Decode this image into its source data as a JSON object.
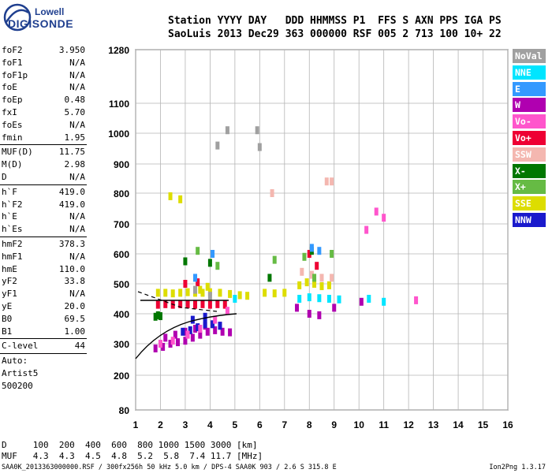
{
  "logo": {
    "line1": "Lowell",
    "line2": "DIGISONDE"
  },
  "header": {
    "labels": "Station YYYY DAY   DDD HHMMSS P1  FFS S AXN PPS IGA PS",
    "values": "SaoLuis 2013 Dec29 363 000000 RSF 005 2 713 100 10+ 22"
  },
  "params_group1": [
    {
      "key": "foF2",
      "value": "3.950"
    },
    {
      "key": "foF1",
      "value": "N/A"
    },
    {
      "key": "foF1p",
      "value": "N/A"
    },
    {
      "key": "foE",
      "value": "N/A"
    },
    {
      "key": "foEp",
      "value": "0.48"
    },
    {
      "key": "fxI",
      "value": "5.70"
    },
    {
      "key": "foEs",
      "value": "N/A"
    },
    {
      "key": "fmin",
      "value": "1.95"
    }
  ],
  "params_group2": [
    {
      "key": "MUF(D)",
      "value": "11.75"
    },
    {
      "key": "M(D)",
      "value": "2.98"
    },
    {
      "key": "D",
      "value": "N/A"
    }
  ],
  "params_group3": [
    {
      "key": "h`F",
      "value": "419.0"
    },
    {
      "key": "h`F2",
      "value": "419.0"
    },
    {
      "key": "h`E",
      "value": "N/A"
    },
    {
      "key": "h`Es",
      "value": "N/A"
    }
  ],
  "params_group4": [
    {
      "key": "hmF2",
      "value": "378.3"
    },
    {
      "key": "hmF1",
      "value": "N/A"
    },
    {
      "key": "hmE",
      "value": "110.0"
    },
    {
      "key": "yF2",
      "value": "33.8"
    },
    {
      "key": "yF1",
      "value": "N/A"
    },
    {
      "key": "yE",
      "value": "20.0"
    },
    {
      "key": "B0",
      "value": "69.5"
    },
    {
      "key": "B1",
      "value": "1.00"
    }
  ],
  "params_group5": [
    {
      "key": "C-level",
      "value": "44"
    }
  ],
  "auto": {
    "line1": "Auto:",
    "line2": "Artist5",
    "line3": "500200"
  },
  "legend": [
    {
      "label": "NoVal",
      "color": "#a0a0a0"
    },
    {
      "label": "NNE",
      "color": "#00e5ff"
    },
    {
      "label": "E",
      "color": "#3399ff"
    },
    {
      "label": "W",
      "color": "#b000b0"
    },
    {
      "label": "Vo-",
      "color": "#ff55cc"
    },
    {
      "label": "Vo+",
      "color": "#ee0033"
    },
    {
      "label": "SSW",
      "color": "#f4b7b0"
    },
    {
      "label": "X-",
      "color": "#007700"
    },
    {
      "label": "X+",
      "color": "#66bb44"
    },
    {
      "label": "SSE",
      "color": "#dddd00"
    },
    {
      "label": "NNW",
      "color": "#1a1acc"
    }
  ],
  "distance_table": {
    "row1": "D     100  200  400  600  800 1000 1500 3000 [km]",
    "row2": "MUF   4.3  4.3  4.5  4.8  5.2  5.8  7.4 11.7 [MHz]"
  },
  "footer_left": "SAA0K_2013363000000.RSF / 300fx256h 50 kHz 5.0 km / DPS-4 SAA0K 903 / 2.6 S 315.8 E",
  "footer_right": "Ion2Png 1.3.17",
  "chart_data": {
    "type": "scatter",
    "title": "",
    "xlabel": "",
    "ylabel": "",
    "x_ticks": [
      1,
      2,
      3,
      4,
      5,
      6,
      7,
      8,
      9,
      10,
      11,
      12,
      13,
      14,
      15,
      16
    ],
    "y_ticks": [
      80,
      200,
      300,
      400,
      500,
      600,
      700,
      800,
      900,
      1000,
      1100,
      1280
    ],
    "xlim": [
      1,
      16
    ],
    "ylim": [
      80,
      1280
    ],
    "y_scale": "nonlinear",
    "grid": true,
    "series": [
      {
        "name": "SSE",
        "color": "#dddd00",
        "points": [
          [
            1.9,
            470
          ],
          [
            2.2,
            470
          ],
          [
            2.5,
            468
          ],
          [
            2.8,
            470
          ],
          [
            3.1,
            472
          ],
          [
            3.4,
            470
          ],
          [
            3.7,
            470
          ],
          [
            4.0,
            472
          ],
          [
            4.4,
            470
          ],
          [
            4.8,
            466
          ],
          [
            5.2,
            462
          ],
          [
            5.5,
            460
          ],
          [
            6.2,
            470
          ],
          [
            6.6,
            468
          ],
          [
            7.0,
            470
          ],
          [
            7.6,
            495
          ],
          [
            7.9,
            505
          ],
          [
            8.2,
            500
          ],
          [
            8.5,
            492
          ],
          [
            8.8,
            495
          ],
          [
            2.4,
            790
          ],
          [
            2.8,
            780
          ],
          [
            3.6,
            480
          ],
          [
            3.9,
            490
          ]
        ]
      },
      {
        "name": "W",
        "color": "#b000b0",
        "points": [
          [
            1.8,
            285
          ],
          [
            2.1,
            290
          ],
          [
            2.4,
            300
          ],
          [
            2.7,
            305
          ],
          [
            3.0,
            310
          ],
          [
            3.3,
            320
          ],
          [
            3.6,
            330
          ],
          [
            3.9,
            340
          ],
          [
            4.2,
            345
          ],
          [
            4.5,
            340
          ],
          [
            4.8,
            338
          ],
          [
            2.2,
            320
          ],
          [
            2.6,
            330
          ],
          [
            3.0,
            340
          ],
          [
            3.4,
            350
          ],
          [
            3.8,
            360
          ],
          [
            4.4,
            360
          ],
          [
            7.5,
            420
          ],
          [
            8.0,
            400
          ],
          [
            8.4,
            395
          ],
          [
            9.0,
            420
          ],
          [
            10.1,
            440
          ]
        ]
      },
      {
        "name": "Vo+",
        "color": "#ee0033",
        "points": [
          [
            1.9,
            430
          ],
          [
            2.2,
            432
          ],
          [
            2.5,
            430
          ],
          [
            2.8,
            432
          ],
          [
            3.1,
            432
          ],
          [
            3.4,
            430
          ],
          [
            3.7,
            432
          ],
          [
            4.0,
            430
          ],
          [
            4.3,
            432
          ],
          [
            4.6,
            430
          ],
          [
            3.0,
            500
          ],
          [
            3.5,
            505
          ],
          [
            8.0,
            600
          ],
          [
            8.3,
            560
          ]
        ]
      },
      {
        "name": "NNW",
        "color": "#1a1acc",
        "points": [
          [
            2.9,
            340
          ],
          [
            3.2,
            345
          ],
          [
            3.5,
            355
          ],
          [
            3.8,
            365
          ],
          [
            4.1,
            365
          ],
          [
            4.4,
            360
          ],
          [
            3.3,
            380
          ],
          [
            3.8,
            390
          ]
        ]
      },
      {
        "name": "NNE",
        "color": "#00e5ff",
        "points": [
          [
            7.6,
            450
          ],
          [
            8.0,
            455
          ],
          [
            8.4,
            452
          ],
          [
            8.8,
            450
          ],
          [
            9.2,
            448
          ],
          [
            10.4,
            450
          ],
          [
            11.0,
            440
          ],
          [
            5.0,
            450
          ]
        ]
      },
      {
        "name": "Vo-",
        "color": "#ff55cc",
        "points": [
          [
            2.0,
            300
          ],
          [
            2.5,
            310
          ],
          [
            3.1,
            330
          ],
          [
            3.6,
            350
          ],
          [
            4.2,
            380
          ],
          [
            4.7,
            410
          ],
          [
            10.3,
            680
          ],
          [
            10.7,
            740
          ],
          [
            11.0,
            720
          ],
          [
            12.3,
            445
          ]
        ]
      },
      {
        "name": "SSW",
        "color": "#f4b7b0",
        "points": [
          [
            7.7,
            540
          ],
          [
            8.1,
            530
          ],
          [
            8.5,
            520
          ],
          [
            8.9,
            520
          ],
          [
            6.5,
            800
          ],
          [
            8.7,
            840
          ],
          [
            8.9,
            840
          ]
        ]
      },
      {
        "name": "X-",
        "color": "#007700",
        "points": [
          [
            1.8,
            390
          ],
          [
            1.9,
            395
          ],
          [
            2.0,
            392
          ],
          [
            3.0,
            575
          ],
          [
            4.0,
            570
          ],
          [
            6.4,
            520
          ],
          [
            8.1,
            610
          ]
        ]
      },
      {
        "name": "X+",
        "color": "#66bb44",
        "points": [
          [
            3.5,
            610
          ],
          [
            4.3,
            560
          ],
          [
            6.6,
            580
          ],
          [
            7.8,
            590
          ],
          [
            8.2,
            520
          ],
          [
            8.9,
            600
          ]
        ]
      },
      {
        "name": "E",
        "color": "#3399ff",
        "points": [
          [
            8.1,
            620
          ],
          [
            8.4,
            610
          ],
          [
            4.1,
            600
          ],
          [
            3.4,
            520
          ]
        ]
      },
      {
        "name": "NoVal",
        "color": "#a0a0a0",
        "points": [
          [
            3.4,
            480
          ],
          [
            4.0,
            460
          ],
          [
            5.9,
            1010
          ],
          [
            6.0,
            955
          ],
          [
            4.3,
            960
          ],
          [
            4.7,
            1010
          ]
        ]
      }
    ]
  }
}
